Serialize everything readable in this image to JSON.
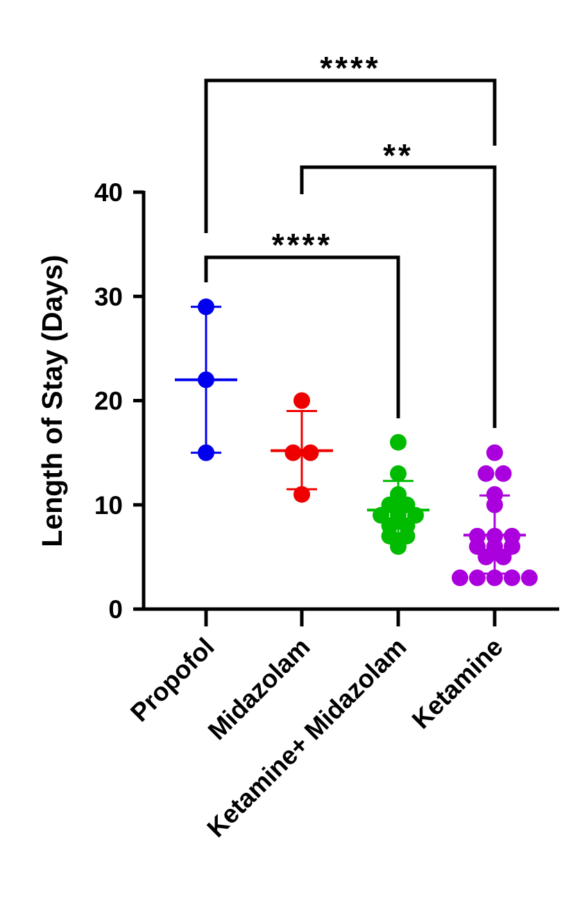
{
  "chart_data": {
    "type": "scatter",
    "title": "",
    "xlabel": "",
    "ylabel": "Length of Stay (Days)",
    "ylim": [
      0,
      40
    ],
    "yticks": [
      0,
      10,
      20,
      30,
      40
    ],
    "grid": false,
    "series": [
      {
        "name": "Propofol",
        "color": "#0000ee",
        "values": [
          15,
          22,
          29
        ],
        "mean": 22,
        "sd_low": 15,
        "sd_high": 29
      },
      {
        "name": "Midazolam",
        "color": "#ee0000",
        "values": [
          11,
          15,
          15,
          20
        ],
        "mean": 15.2,
        "sd_low": 11.5,
        "sd_high": 19
      },
      {
        "name": "Ketamine+ Midazolam",
        "color": "#00bb00",
        "values": [
          6,
          7,
          7,
          8,
          8,
          9,
          9,
          9,
          10,
          10,
          11,
          13,
          16
        ],
        "mean": 9.5,
        "sd_low": 6.7,
        "sd_high": 12.3
      },
      {
        "name": "Ketamine",
        "color": "#aa00dd",
        "values": [
          3,
          3,
          3,
          3,
          3,
          5,
          5,
          6,
          6,
          6,
          7,
          7,
          7,
          10,
          11,
          13,
          13,
          15
        ],
        "mean": 7.1,
        "sd_low": 3.4,
        "sd_high": 10.9
      }
    ],
    "comparisons": [
      {
        "from": "Propofol",
        "to": "Ketamine+ Midazolam",
        "label": "****"
      },
      {
        "from": "Midazolam",
        "to": "Ketamine",
        "label": "**"
      },
      {
        "from": "Propofol",
        "to": "Ketamine",
        "label": "****"
      }
    ]
  }
}
